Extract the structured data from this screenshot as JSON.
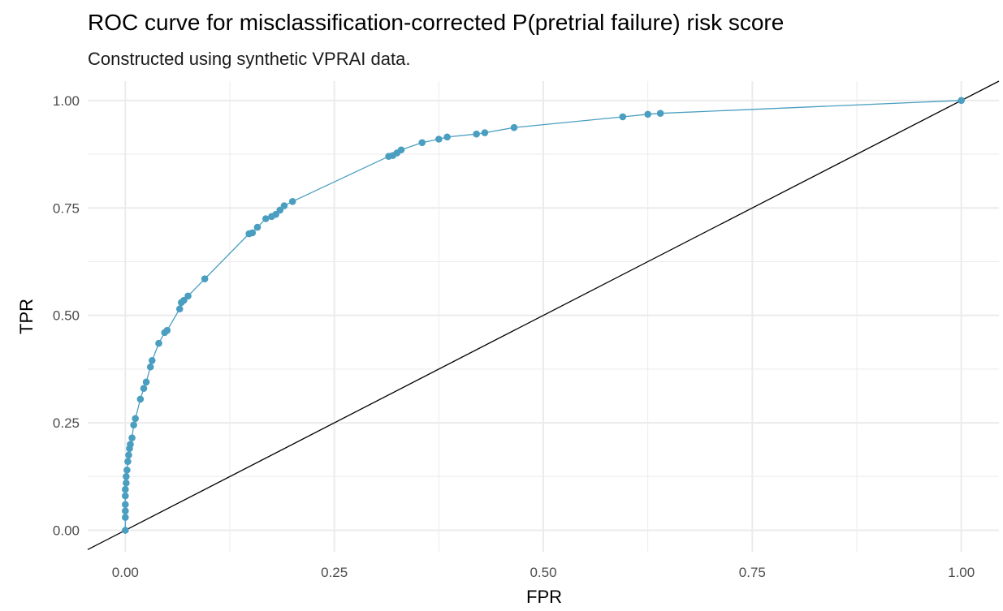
{
  "chart_data": {
    "type": "line",
    "title": "ROC curve for misclassification-corrected P(pretrial failure) risk score",
    "subtitle": "Constructed using synthetic VPRAI data.",
    "xlabel": "FPR",
    "ylabel": "TPR",
    "xlim": [
      -0.045,
      1.045
    ],
    "ylim": [
      -0.05,
      1.045
    ],
    "x_ticks": [
      "0.00",
      "0.25",
      "0.50",
      "0.75",
      "1.00"
    ],
    "y_ticks": [
      "0.00",
      "0.25",
      "0.50",
      "0.75",
      "1.00"
    ],
    "grid": true,
    "colors": {
      "curve": "#4a9ec0",
      "reference": "#000000",
      "grid": "#ebebeb"
    },
    "series": [
      {
        "values": [
          [
            0.0,
            0.0
          ],
          [
            0.0,
            0.03
          ],
          [
            0.0,
            0.045
          ],
          [
            0.0,
            0.06
          ],
          [
            0.0,
            0.08
          ],
          [
            0.0,
            0.095
          ],
          [
            0.001,
            0.11
          ],
          [
            0.001,
            0.125
          ],
          [
            0.002,
            0.14
          ],
          [
            0.003,
            0.16
          ],
          [
            0.004,
            0.175
          ],
          [
            0.005,
            0.19
          ],
          [
            0.006,
            0.2
          ],
          [
            0.008,
            0.215
          ],
          [
            0.01,
            0.245
          ],
          [
            0.012,
            0.26
          ],
          [
            0.018,
            0.305
          ],
          [
            0.022,
            0.33
          ],
          [
            0.025,
            0.345
          ],
          [
            0.03,
            0.38
          ],
          [
            0.032,
            0.395
          ],
          [
            0.04,
            0.435
          ],
          [
            0.047,
            0.46
          ],
          [
            0.05,
            0.465
          ],
          [
            0.065,
            0.515
          ],
          [
            0.067,
            0.53
          ],
          [
            0.07,
            0.535
          ],
          [
            0.075,
            0.545
          ],
          [
            0.095,
            0.585
          ],
          [
            0.148,
            0.69
          ],
          [
            0.152,
            0.692
          ],
          [
            0.158,
            0.705
          ],
          [
            0.168,
            0.725
          ],
          [
            0.175,
            0.73
          ],
          [
            0.18,
            0.735
          ],
          [
            0.185,
            0.745
          ],
          [
            0.19,
            0.755
          ],
          [
            0.2,
            0.765
          ],
          [
            0.315,
            0.87
          ],
          [
            0.32,
            0.872
          ],
          [
            0.325,
            0.878
          ],
          [
            0.33,
            0.885
          ],
          [
            0.355,
            0.902
          ],
          [
            0.375,
            0.91
          ],
          [
            0.385,
            0.915
          ],
          [
            0.42,
            0.922
          ],
          [
            0.43,
            0.925
          ],
          [
            0.465,
            0.937
          ],
          [
            0.595,
            0.962
          ],
          [
            0.625,
            0.968
          ],
          [
            0.64,
            0.97
          ],
          [
            1.0,
            1.0
          ]
        ]
      }
    ],
    "reference_line": {
      "intercept": 0,
      "slope": 1
    }
  }
}
